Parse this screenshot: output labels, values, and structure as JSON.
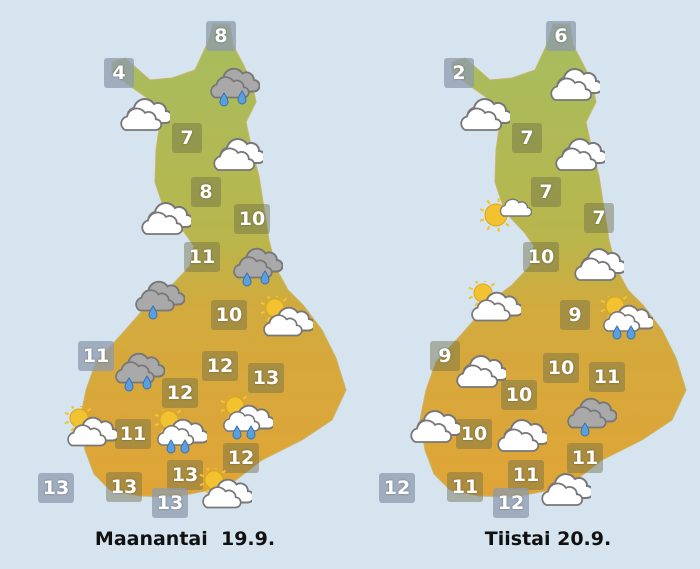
{
  "colors": {
    "background": "#d6e4f0",
    "land_north": "#a3bb5e",
    "land_south": "#dba63a",
    "temp_box": "#6e6e46",
    "rain_drop": "#5aa0e0",
    "sun": "#f2c230"
  },
  "maps": [
    {
      "caption": "Maanantai  19.9.",
      "temps": [
        "8",
        "4",
        "7",
        "8",
        "10",
        "11",
        "10",
        "11",
        "12",
        "13",
        "12",
        "11",
        "12",
        "13",
        "13",
        "13",
        "13"
      ],
      "icons": [
        "cloudy",
        "rain",
        "cloudy",
        "cloudy",
        "rain",
        "light-rain",
        "partly-cloudy",
        "rain",
        "partly-cloudy",
        "partly-cloudy-rain",
        "partly-cloudy-rain",
        "partly-cloudy"
      ]
    },
    {
      "caption": "Tiistai 20.9.",
      "temps": [
        "6",
        "2",
        "7",
        "7",
        "7",
        "10",
        "9",
        "9",
        "10",
        "11",
        "10",
        "10",
        "11",
        "11",
        "12",
        "11",
        "12"
      ],
      "icons": [
        "cloudy",
        "cloudy",
        "cloudy",
        "sunny-cloud",
        "cloudy",
        "partly-cloudy",
        "partly-cloudy-rain",
        "cloudy",
        "cloudy",
        "cloudy",
        "light-rain",
        "cloudy"
      ]
    }
  ]
}
